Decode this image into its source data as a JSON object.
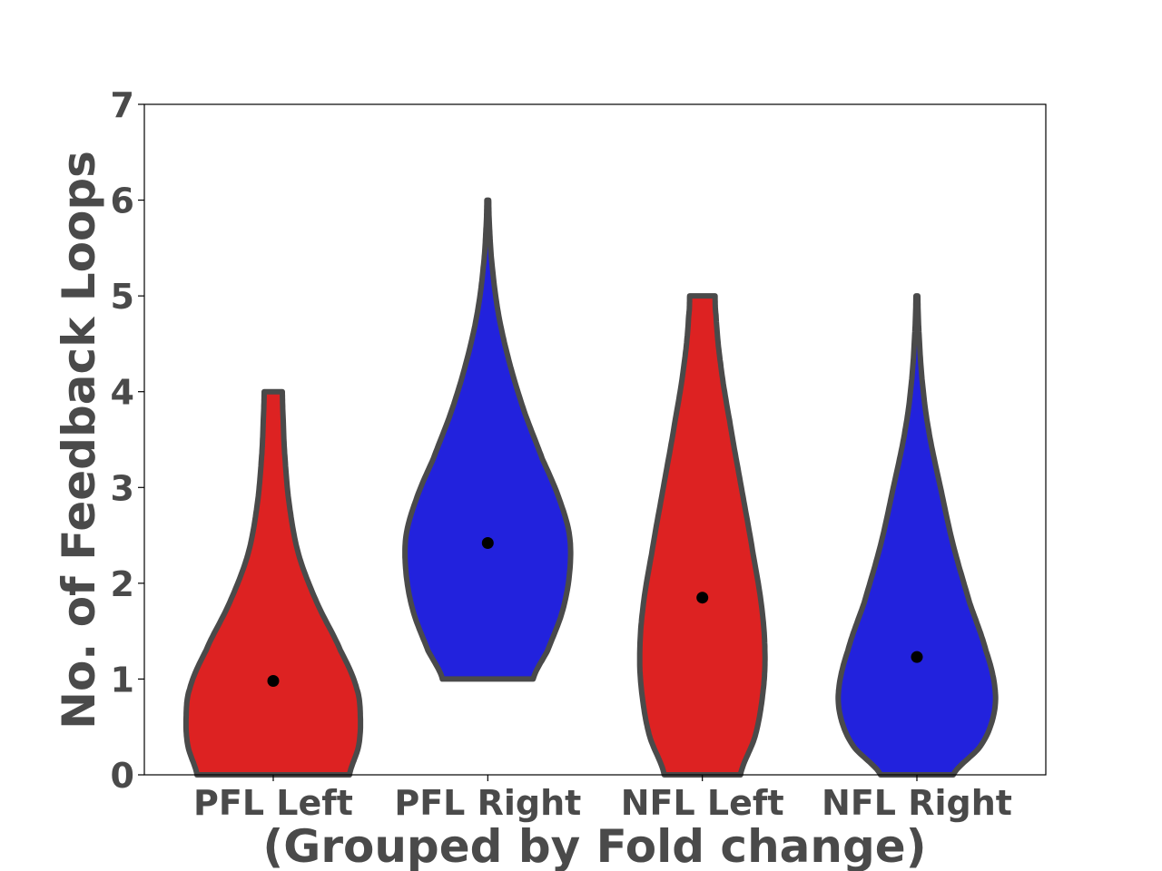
{
  "chart_data": {
    "type": "violin",
    "title": "",
    "xlabel": "(Grouped by Fold change)",
    "ylabel": "No. of Feedback Loops",
    "categories": [
      "PFL Left",
      "PFL Right",
      "NFL Left",
      "NFL Right"
    ],
    "ylim": [
      0,
      7
    ],
    "yticks": [
      0,
      1,
      2,
      3,
      4,
      5,
      6,
      7
    ],
    "grid": false,
    "legend": "none",
    "colors": {
      "left": "#dd2222",
      "right": "#2222dd",
      "outline": "#4a4a4a",
      "median": "#000000",
      "text": "#4a4a4a"
    },
    "violins": [
      {
        "category": "PFL Left",
        "fill": "#dd2222",
        "median": 0.98,
        "cut_bottom": true,
        "cut_top": true,
        "profile": [
          [
            0,
            0.42
          ],
          [
            0.3,
            0.47
          ],
          [
            0.6,
            0.48
          ],
          [
            0.9,
            0.46
          ],
          [
            1.3,
            0.37
          ],
          [
            1.8,
            0.24
          ],
          [
            2.3,
            0.14
          ],
          [
            2.8,
            0.09
          ],
          [
            3.3,
            0.065
          ],
          [
            3.7,
            0.055
          ],
          [
            4,
            0.05
          ]
        ]
      },
      {
        "category": "PFL Right",
        "fill": "#2222dd",
        "median": 2.42,
        "cut_bottom": true,
        "cut_top": false,
        "profile": [
          [
            1,
            0.25
          ],
          [
            1.3,
            0.33
          ],
          [
            1.7,
            0.41
          ],
          [
            2.1,
            0.45
          ],
          [
            2.5,
            0.45
          ],
          [
            2.9,
            0.39
          ],
          [
            3.3,
            0.3
          ],
          [
            3.8,
            0.2
          ],
          [
            4.3,
            0.12
          ],
          [
            4.8,
            0.06
          ],
          [
            5.3,
            0.025
          ],
          [
            5.7,
            0.01
          ],
          [
            6,
            0.005
          ]
        ]
      },
      {
        "category": "NFL Left",
        "fill": "#dd2222",
        "median": 1.85,
        "cut_bottom": true,
        "cut_top": true,
        "profile": [
          [
            0,
            0.21
          ],
          [
            0.4,
            0.29
          ],
          [
            0.8,
            0.33
          ],
          [
            1.2,
            0.345
          ],
          [
            1.7,
            0.33
          ],
          [
            2.3,
            0.28
          ],
          [
            3,
            0.215
          ],
          [
            3.7,
            0.15
          ],
          [
            4.3,
            0.1
          ],
          [
            4.8,
            0.075
          ],
          [
            5,
            0.07
          ]
        ]
      },
      {
        "category": "NFL Right",
        "fill": "#2222dd",
        "median": 1.23,
        "cut_bottom": true,
        "cut_top": false,
        "profile": [
          [
            0,
            0.2
          ],
          [
            0.3,
            0.35
          ],
          [
            0.6,
            0.42
          ],
          [
            0.9,
            0.43
          ],
          [
            1.3,
            0.38
          ],
          [
            1.8,
            0.29
          ],
          [
            2.4,
            0.2
          ],
          [
            3,
            0.13
          ],
          [
            3.6,
            0.065
          ],
          [
            4.1,
            0.03
          ],
          [
            4.6,
            0.012
          ],
          [
            5,
            0.005
          ]
        ]
      }
    ]
  }
}
